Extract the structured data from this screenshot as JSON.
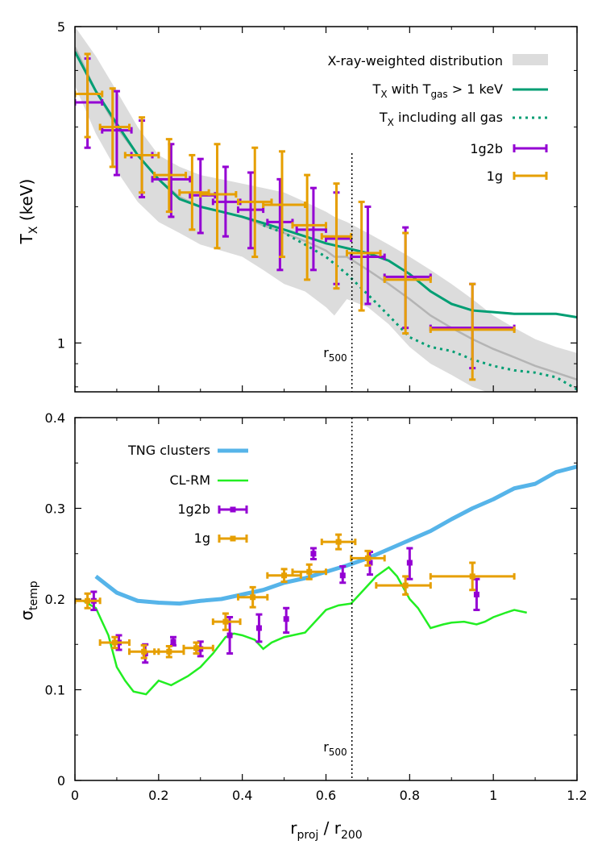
{
  "colors": {
    "band": "#dcdcdc",
    "band_median": "#b4b4b4",
    "green": "#009e73",
    "purple": "#9400d3",
    "orange": "#e69f00",
    "tng": "#56b4e9",
    "clrm": "#22ee22"
  },
  "marker": {
    "label_main": "r",
    "label_sub": "500",
    "x": 0.662
  },
  "shared_x": {
    "label_main": "r",
    "label_sub1": "proj",
    "label_mid": " / r",
    "label_sub2": "200",
    "ticks": [
      "0",
      "0.2",
      "0.4",
      "0.6",
      "0.8",
      "1",
      "1.2"
    ],
    "tick_values": [
      0,
      0.2,
      0.4,
      0.6,
      0.8,
      1.0,
      1.2
    ]
  },
  "chart_data": [
    {
      "type": "line",
      "panel": "top",
      "xlim": [
        0,
        1.2
      ],
      "ylim": [
        0.78,
        5
      ],
      "yscale": "log",
      "ylabel_main": "T",
      "ylabel_sub": "X",
      "ylabel_rest": " (keV)",
      "yticks": [
        "1",
        "5"
      ],
      "ytick_values": [
        1,
        5
      ],
      "legend": {
        "placement": "top-right",
        "band": "X-ray-weighted distribution",
        "hot": {
          "a": "T",
          "a_sub": "X",
          "b": " with T",
          "b_sub": "gas",
          "c": " > 1 keV"
        },
        "all": {
          "a": "T",
          "a_sub": "X",
          "b": " including all gas"
        },
        "s1g2b": "1g2b",
        "s1g": "1g"
      },
      "band": {
        "x": [
          0,
          0.05,
          0.1,
          0.15,
          0.2,
          0.25,
          0.3,
          0.35,
          0.4,
          0.45,
          0.5,
          0.55,
          0.6,
          0.62,
          0.65,
          0.7,
          0.75,
          0.8,
          0.85,
          0.9,
          0.95,
          1.0,
          1.05,
          1.1,
          1.15,
          1.2
        ],
        "lo": [
          3.7,
          2.9,
          2.4,
          2.05,
          1.85,
          1.75,
          1.65,
          1.6,
          1.55,
          1.45,
          1.35,
          1.3,
          1.2,
          1.15,
          1.25,
          1.2,
          1.1,
          0.98,
          0.9,
          0.85,
          0.8,
          0.77,
          0.75,
          0.74,
          0.73,
          0.72
        ],
        "hi": [
          5.0,
          4.3,
          3.6,
          3.0,
          2.6,
          2.45,
          2.35,
          2.3,
          2.25,
          2.2,
          2.15,
          2.05,
          1.95,
          1.9,
          1.85,
          1.75,
          1.65,
          1.55,
          1.45,
          1.35,
          1.25,
          1.15,
          1.08,
          1.02,
          0.98,
          0.95
        ],
        "median": [
          4.5,
          3.6,
          3.0,
          2.6,
          2.3,
          2.1,
          2.0,
          1.95,
          1.9,
          1.82,
          1.75,
          1.68,
          1.6,
          1.55,
          1.55,
          1.45,
          1.35,
          1.25,
          1.15,
          1.08,
          1.02,
          0.97,
          0.93,
          0.89,
          0.86,
          0.83
        ]
      },
      "series": [
        {
          "name": "T_X with T_gas > 1 keV",
          "style": "solid",
          "x": [
            0,
            0.05,
            0.1,
            0.15,
            0.2,
            0.25,
            0.3,
            0.35,
            0.4,
            0.45,
            0.5,
            0.55,
            0.6,
            0.65,
            0.7,
            0.75,
            0.8,
            0.85,
            0.9,
            0.95,
            1.0,
            1.05,
            1.1,
            1.15,
            1.2
          ],
          "y": [
            4.4,
            3.6,
            3.05,
            2.6,
            2.3,
            2.08,
            2.0,
            1.95,
            1.9,
            1.84,
            1.78,
            1.72,
            1.66,
            1.62,
            1.58,
            1.52,
            1.42,
            1.3,
            1.22,
            1.18,
            1.17,
            1.16,
            1.16,
            1.16,
            1.14
          ]
        },
        {
          "name": "T_X including all gas",
          "style": "dotted",
          "x": [
            0.45,
            0.5,
            0.55,
            0.6,
            0.65,
            0.7,
            0.75,
            0.8,
            0.85,
            0.9,
            0.95,
            1.0,
            1.05,
            1.1,
            1.15,
            1.2
          ],
          "y": [
            1.82,
            1.75,
            1.65,
            1.55,
            1.42,
            1.28,
            1.15,
            1.03,
            0.98,
            0.96,
            0.92,
            0.89,
            0.87,
            0.86,
            0.84,
            0.79
          ]
        }
      ],
      "points_1g2b": [
        {
          "x": 0.03,
          "y": 3.4,
          "xlo": 0.0,
          "xhi": 0.065,
          "ylo": 2.7,
          "yhi": 4.25
        },
        {
          "x": 0.1,
          "y": 2.95,
          "xlo": 0.065,
          "xhi": 0.135,
          "ylo": 2.35,
          "yhi": 3.6
        },
        {
          "x": 0.16,
          "y": 2.6,
          "xlo": 0.135,
          "xhi": 0.185,
          "ylo": 2.1,
          "yhi": 3.1
        },
        {
          "x": 0.23,
          "y": 2.3,
          "xlo": 0.185,
          "xhi": 0.275,
          "ylo": 1.9,
          "yhi": 2.75
        },
        {
          "x": 0.3,
          "y": 2.12,
          "xlo": 0.275,
          "xhi": 0.335,
          "ylo": 1.75,
          "yhi": 2.55
        },
        {
          "x": 0.36,
          "y": 2.05,
          "xlo": 0.33,
          "xhi": 0.395,
          "ylo": 1.72,
          "yhi": 2.45
        },
        {
          "x": 0.42,
          "y": 1.97,
          "xlo": 0.39,
          "xhi": 0.45,
          "ylo": 1.62,
          "yhi": 2.38
        },
        {
          "x": 0.49,
          "y": 1.85,
          "xlo": 0.46,
          "xhi": 0.52,
          "ylo": 1.45,
          "yhi": 2.3
        },
        {
          "x": 0.57,
          "y": 1.78,
          "xlo": 0.53,
          "xhi": 0.6,
          "ylo": 1.45,
          "yhi": 2.2
        },
        {
          "x": 0.625,
          "y": 1.7,
          "xlo": 0.6,
          "xhi": 0.66,
          "ylo": 1.35,
          "yhi": 2.15
        },
        {
          "x": 0.7,
          "y": 1.55,
          "xlo": 0.66,
          "xhi": 0.74,
          "ylo": 1.22,
          "yhi": 2.0
        },
        {
          "x": 0.79,
          "y": 1.4,
          "xlo": 0.74,
          "xhi": 0.85,
          "ylo": 1.08,
          "yhi": 1.8
        },
        {
          "x": 0.95,
          "y": 1.08,
          "xlo": 0.85,
          "xhi": 1.05,
          "ylo": 0.88,
          "yhi": 1.35
        }
      ],
      "points_1g": [
        {
          "x": 0.03,
          "y": 3.55,
          "xlo": 0.0,
          "xhi": 0.065,
          "ylo": 2.85,
          "yhi": 4.35
        },
        {
          "x": 0.09,
          "y": 3.0,
          "xlo": 0.06,
          "xhi": 0.13,
          "ylo": 2.45,
          "yhi": 3.65
        },
        {
          "x": 0.16,
          "y": 2.6,
          "xlo": 0.12,
          "xhi": 0.2,
          "ylo": 2.15,
          "yhi": 3.15
        },
        {
          "x": 0.225,
          "y": 2.35,
          "xlo": 0.19,
          "xhi": 0.265,
          "ylo": 1.95,
          "yhi": 2.82
        },
        {
          "x": 0.28,
          "y": 2.15,
          "xlo": 0.25,
          "xhi": 0.32,
          "ylo": 1.78,
          "yhi": 2.6
        },
        {
          "x": 0.34,
          "y": 2.13,
          "xlo": 0.3,
          "xhi": 0.385,
          "ylo": 1.62,
          "yhi": 2.75
        },
        {
          "x": 0.43,
          "y": 2.05,
          "xlo": 0.39,
          "xhi": 0.47,
          "ylo": 1.55,
          "yhi": 2.7
        },
        {
          "x": 0.495,
          "y": 2.02,
          "xlo": 0.45,
          "xhi": 0.55,
          "ylo": 1.55,
          "yhi": 2.65
        },
        {
          "x": 0.555,
          "y": 1.82,
          "xlo": 0.52,
          "xhi": 0.6,
          "ylo": 1.38,
          "yhi": 2.35
        },
        {
          "x": 0.625,
          "y": 1.72,
          "xlo": 0.59,
          "xhi": 0.66,
          "ylo": 1.32,
          "yhi": 2.25
        },
        {
          "x": 0.685,
          "y": 1.58,
          "xlo": 0.65,
          "xhi": 0.73,
          "ylo": 1.18,
          "yhi": 2.05
        },
        {
          "x": 0.79,
          "y": 1.38,
          "xlo": 0.74,
          "xhi": 0.85,
          "ylo": 1.05,
          "yhi": 1.75
        },
        {
          "x": 0.95,
          "y": 1.07,
          "xlo": 0.85,
          "xhi": 1.05,
          "ylo": 0.83,
          "yhi": 1.35
        }
      ]
    },
    {
      "type": "line",
      "panel": "bottom",
      "xlim": [
        0,
        1.2
      ],
      "ylim": [
        0,
        0.4
      ],
      "ylabel_main": "σ",
      "ylabel_sub": "temp",
      "yticks": [
        "0",
        "0.1",
        "0.2",
        "0.3",
        "0.4"
      ],
      "ytick_values": [
        0,
        0.1,
        0.2,
        0.3,
        0.4
      ],
      "legend": {
        "placement": "top-left",
        "tng": "TNG clusters",
        "clrm": "CL-RM",
        "s1g2b": "1g2b",
        "s1g": "1g"
      },
      "series": [
        {
          "name": "TNG clusters",
          "x": [
            0.05,
            0.1,
            0.15,
            0.2,
            0.25,
            0.3,
            0.35,
            0.4,
            0.45,
            0.5,
            0.55,
            0.6,
            0.65,
            0.7,
            0.75,
            0.8,
            0.85,
            0.9,
            0.95,
            1.0,
            1.05,
            1.1,
            1.15,
            1.2
          ],
          "y": [
            0.225,
            0.207,
            0.198,
            0.196,
            0.195,
            0.198,
            0.2,
            0.205,
            0.21,
            0.218,
            0.223,
            0.23,
            0.237,
            0.245,
            0.255,
            0.265,
            0.275,
            0.288,
            0.3,
            0.31,
            0.322,
            0.327,
            0.34,
            0.346
          ]
        },
        {
          "name": "CL-RM",
          "x": [
            0.02,
            0.05,
            0.08,
            0.1,
            0.12,
            0.14,
            0.17,
            0.2,
            0.23,
            0.27,
            0.3,
            0.33,
            0.36,
            0.38,
            0.4,
            0.43,
            0.45,
            0.47,
            0.5,
            0.55,
            0.58,
            0.6,
            0.63,
            0.66,
            0.69,
            0.72,
            0.75,
            0.77,
            0.8,
            0.82,
            0.85,
            0.88,
            0.9,
            0.93,
            0.96,
            0.98,
            1.0,
            1.03,
            1.05,
            1.08
          ],
          "y": [
            0.198,
            0.19,
            0.16,
            0.125,
            0.11,
            0.098,
            0.095,
            0.11,
            0.105,
            0.115,
            0.125,
            0.14,
            0.158,
            0.162,
            0.16,
            0.155,
            0.145,
            0.152,
            0.158,
            0.163,
            0.178,
            0.188,
            0.193,
            0.195,
            0.21,
            0.225,
            0.235,
            0.225,
            0.2,
            0.19,
            0.168,
            0.172,
            0.174,
            0.175,
            0.172,
            0.175,
            0.18,
            0.185,
            0.188,
            0.185
          ]
        }
      ],
      "points_1g2b": [
        {
          "x": 0.045,
          "y": 0.198,
          "xlo": 0.045,
          "xhi": 0.045,
          "ylo": 0.188,
          "yhi": 0.208
        },
        {
          "x": 0.105,
          "y": 0.152,
          "xlo": 0.105,
          "xhi": 0.105,
          "ylo": 0.144,
          "yhi": 0.16
        },
        {
          "x": 0.168,
          "y": 0.14,
          "xlo": 0.168,
          "xhi": 0.168,
          "ylo": 0.13,
          "yhi": 0.15
        },
        {
          "x": 0.235,
          "y": 0.153,
          "xlo": 0.235,
          "xhi": 0.235,
          "ylo": 0.149,
          "yhi": 0.158
        },
        {
          "x": 0.3,
          "y": 0.145,
          "xlo": 0.3,
          "xhi": 0.3,
          "ylo": 0.137,
          "yhi": 0.153
        },
        {
          "x": 0.37,
          "y": 0.16,
          "xlo": 0.37,
          "xhi": 0.37,
          "ylo": 0.14,
          "yhi": 0.18
        },
        {
          "x": 0.44,
          "y": 0.168,
          "xlo": 0.44,
          "xhi": 0.44,
          "ylo": 0.153,
          "yhi": 0.183
        },
        {
          "x": 0.505,
          "y": 0.178,
          "xlo": 0.505,
          "xhi": 0.505,
          "ylo": 0.163,
          "yhi": 0.19
        },
        {
          "x": 0.57,
          "y": 0.25,
          "xlo": 0.57,
          "xhi": 0.57,
          "ylo": 0.244,
          "yhi": 0.256
        },
        {
          "x": 0.64,
          "y": 0.226,
          "xlo": 0.64,
          "xhi": 0.64,
          "ylo": 0.218,
          "yhi": 0.236
        },
        {
          "x": 0.705,
          "y": 0.24,
          "xlo": 0.705,
          "xhi": 0.705,
          "ylo": 0.227,
          "yhi": 0.252
        },
        {
          "x": 0.8,
          "y": 0.24,
          "xlo": 0.8,
          "xhi": 0.8,
          "ylo": 0.222,
          "yhi": 0.256
        },
        {
          "x": 0.96,
          "y": 0.205,
          "xlo": 0.96,
          "xhi": 0.96,
          "ylo": 0.188,
          "yhi": 0.222
        }
      ],
      "points_1g": [
        {
          "x": 0.03,
          "y": 0.198,
          "xlo": 0.0,
          "xhi": 0.06,
          "ylo": 0.19,
          "yhi": 0.206
        },
        {
          "x": 0.095,
          "y": 0.152,
          "xlo": 0.06,
          "xhi": 0.13,
          "ylo": 0.146,
          "yhi": 0.158
        },
        {
          "x": 0.165,
          "y": 0.142,
          "xlo": 0.13,
          "xhi": 0.2,
          "ylo": 0.135,
          "yhi": 0.149
        },
        {
          "x": 0.225,
          "y": 0.142,
          "xlo": 0.19,
          "xhi": 0.26,
          "ylo": 0.136,
          "yhi": 0.148
        },
        {
          "x": 0.29,
          "y": 0.146,
          "xlo": 0.26,
          "xhi": 0.33,
          "ylo": 0.14,
          "yhi": 0.152
        },
        {
          "x": 0.36,
          "y": 0.175,
          "xlo": 0.33,
          "xhi": 0.395,
          "ylo": 0.166,
          "yhi": 0.184
        },
        {
          "x": 0.425,
          "y": 0.202,
          "xlo": 0.39,
          "xhi": 0.46,
          "ylo": 0.191,
          "yhi": 0.213
        },
        {
          "x": 0.5,
          "y": 0.226,
          "xlo": 0.46,
          "xhi": 0.54,
          "ylo": 0.219,
          "yhi": 0.233
        },
        {
          "x": 0.56,
          "y": 0.23,
          "xlo": 0.52,
          "xhi": 0.6,
          "ylo": 0.222,
          "yhi": 0.238
        },
        {
          "x": 0.63,
          "y": 0.263,
          "xlo": 0.59,
          "xhi": 0.67,
          "ylo": 0.255,
          "yhi": 0.271
        },
        {
          "x": 0.7,
          "y": 0.245,
          "xlo": 0.66,
          "xhi": 0.74,
          "ylo": 0.237,
          "yhi": 0.253
        },
        {
          "x": 0.79,
          "y": 0.215,
          "xlo": 0.72,
          "xhi": 0.85,
          "ylo": 0.205,
          "yhi": 0.225
        },
        {
          "x": 0.95,
          "y": 0.225,
          "xlo": 0.85,
          "xhi": 1.05,
          "ylo": 0.21,
          "yhi": 0.24
        }
      ]
    }
  ]
}
